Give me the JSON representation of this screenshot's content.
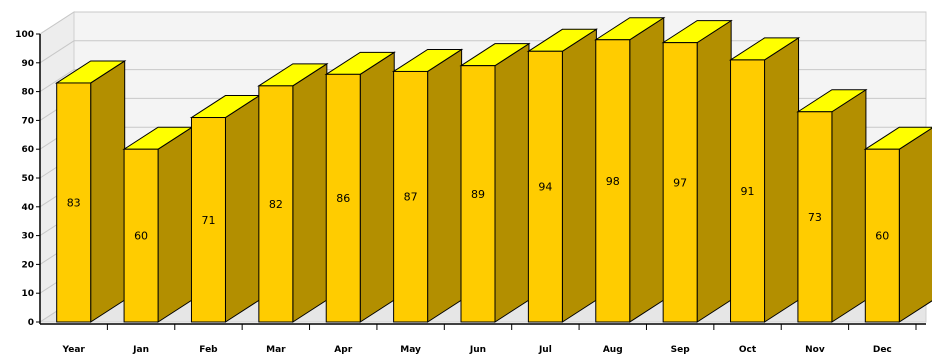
{
  "chart_data": {
    "type": "bar",
    "title": "",
    "xlabel": "",
    "ylabel": "",
    "categories": [
      "Year",
      "Jan",
      "Feb",
      "Mar",
      "Apr",
      "May",
      "Jun",
      "Jul",
      "Aug",
      "Sep",
      "Oct",
      "Nov",
      "Dec"
    ],
    "values": [
      83,
      60,
      71,
      82,
      86,
      87,
      89,
      94,
      98,
      97,
      91,
      73,
      60
    ],
    "ylim": [
      0,
      100
    ],
    "yticks": [
      0,
      10,
      20,
      30,
      40,
      50,
      60,
      70,
      80,
      90,
      100
    ],
    "grid": true,
    "style": "3d",
    "colors": {
      "bar_front": "#FFCC00",
      "bar_top": "#FFFF00",
      "bar_side": "#B38F00",
      "bar_edge": "#000000",
      "grid": "#C8C8C8",
      "backwall": "#F4F4F4",
      "floor": "#E6E6E6"
    }
  }
}
